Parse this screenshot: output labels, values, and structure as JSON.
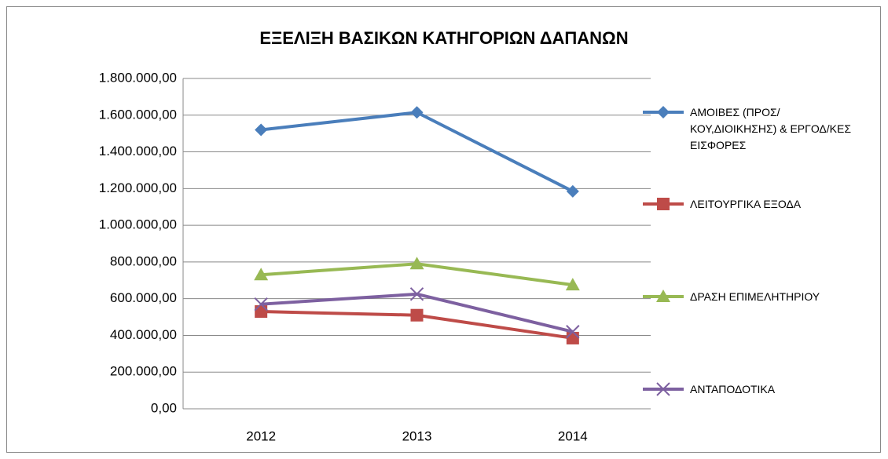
{
  "chart_data": {
    "type": "line",
    "title": "ΕΞΕΛΙΞΗ ΒΑΣΙΚΩΝ ΚΑΤΗΓΟΡΙΩΝ ΔΑΠΑΝΩΝ",
    "categories": [
      "2012",
      "2013",
      "2014"
    ],
    "series": [
      {
        "name": "ΑΜΟΙΒΕΣ (ΠΡΟΣ/ΚΟΥ,ΔΙΟΙΚΗΣΗΣ) & ΕΡΓΟΔ/ΚΕΣ ΕΙΣΦΟΡΕΣ",
        "color": "#4a7ebb",
        "marker": "diamond",
        "values": [
          1520000,
          1615000,
          1185000
        ]
      },
      {
        "name": "ΛΕΙΤΟΥΡΓΙΚΑ ΕΞΟΔΑ",
        "color": "#be4b48",
        "marker": "square",
        "values": [
          530000,
          510000,
          385000
        ]
      },
      {
        "name": "ΔΡΑΣΗ ΕΠΙΜΕΛΗΤΗΡΙΟΥ",
        "color": "#98b954",
        "marker": "triangle",
        "values": [
          730000,
          790000,
          675000
        ]
      },
      {
        "name": "ΑΝΤΑΠΟΔΟΤΙΚΑ",
        "color": "#7d60a0",
        "marker": "x",
        "values": [
          570000,
          625000,
          420000
        ]
      }
    ],
    "ylim": [
      0,
      1800000
    ],
    "yticks": [
      {
        "value": 0,
        "label": "0,00"
      },
      {
        "value": 200000,
        "label": "200.000,00"
      },
      {
        "value": 400000,
        "label": "400.000,00"
      },
      {
        "value": 600000,
        "label": "600.000,00"
      },
      {
        "value": 800000,
        "label": "800.000,00"
      },
      {
        "value": 1000000,
        "label": "1.000.000,00"
      },
      {
        "value": 1200000,
        "label": "1.200.000,00"
      },
      {
        "value": 1400000,
        "label": "1.400.000,00"
      },
      {
        "value": 1600000,
        "label": "1.600.000,00"
      },
      {
        "value": 1800000,
        "label": "1.800.000,00"
      }
    ],
    "grid": true,
    "legend": "right"
  }
}
